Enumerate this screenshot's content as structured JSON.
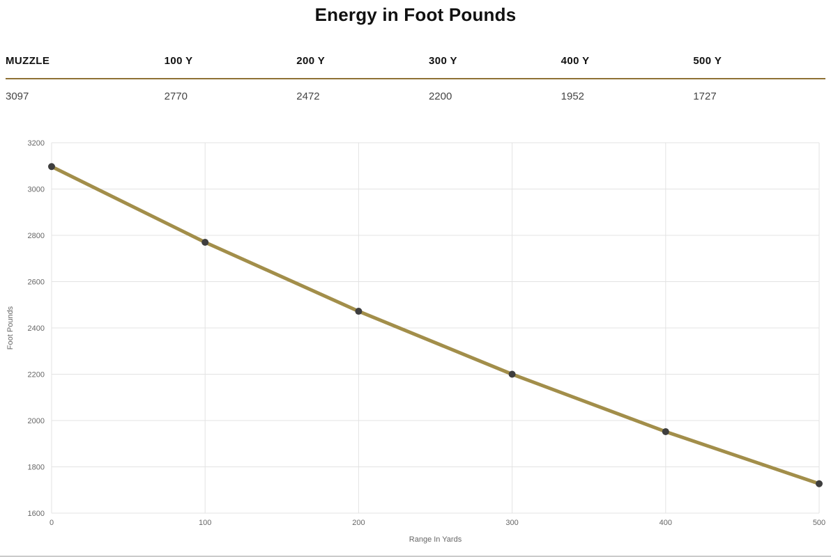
{
  "title": "Energy in Foot Pounds",
  "table": {
    "headers": [
      "MUZZLE",
      "100 Y",
      "200 Y",
      "300 Y",
      "400 Y",
      "500 Y"
    ],
    "values": [
      "3097",
      "2770",
      "2472",
      "2200",
      "1952",
      "1727"
    ]
  },
  "chart_data": {
    "type": "line",
    "title": "Energy in Foot Pounds",
    "x": [
      0,
      100,
      200,
      300,
      400,
      500
    ],
    "series": [
      {
        "name": "Energy",
        "values": [
          3097,
          2770,
          2472,
          2200,
          1952,
          1727
        ]
      }
    ],
    "xlabel": "Range In Yards",
    "ylabel": "Foot Pounds",
    "xlim": [
      0,
      500
    ],
    "ylim": [
      1600,
      3200
    ],
    "x_ticks": [
      0,
      100,
      200,
      300,
      400,
      500
    ],
    "y_ticks": [
      1600,
      1800,
      2000,
      2200,
      2400,
      2600,
      2800,
      3000,
      3200
    ],
    "grid": true,
    "legend": "none",
    "line_color": "#a28e4a",
    "point_color": "#3e3e3e",
    "grid_color": "#e3e3e3"
  }
}
